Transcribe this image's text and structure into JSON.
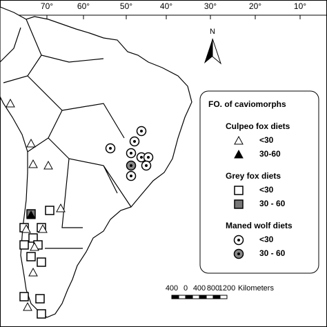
{
  "longitude_labels": [
    "70°",
    "60°",
    "50°",
    "40°",
    "30°",
    "20°",
    "10°"
  ],
  "north_label": "N",
  "legend": {
    "title": "FO. of caviomorphs",
    "groups": [
      {
        "title": "Culpeo fox diets",
        "items": [
          "<30",
          "30-60"
        ]
      },
      {
        "title": "Grey fox diets",
        "items": [
          "<30",
          "30 - 60"
        ]
      },
      {
        "title": "Maned wolf diets",
        "items": [
          "<30",
          "30 - 60"
        ]
      }
    ]
  },
  "scale_bar": {
    "ticks": [
      "400",
      "0",
      "400",
      "800",
      "1200"
    ],
    "unit": "Kilometers"
  }
}
